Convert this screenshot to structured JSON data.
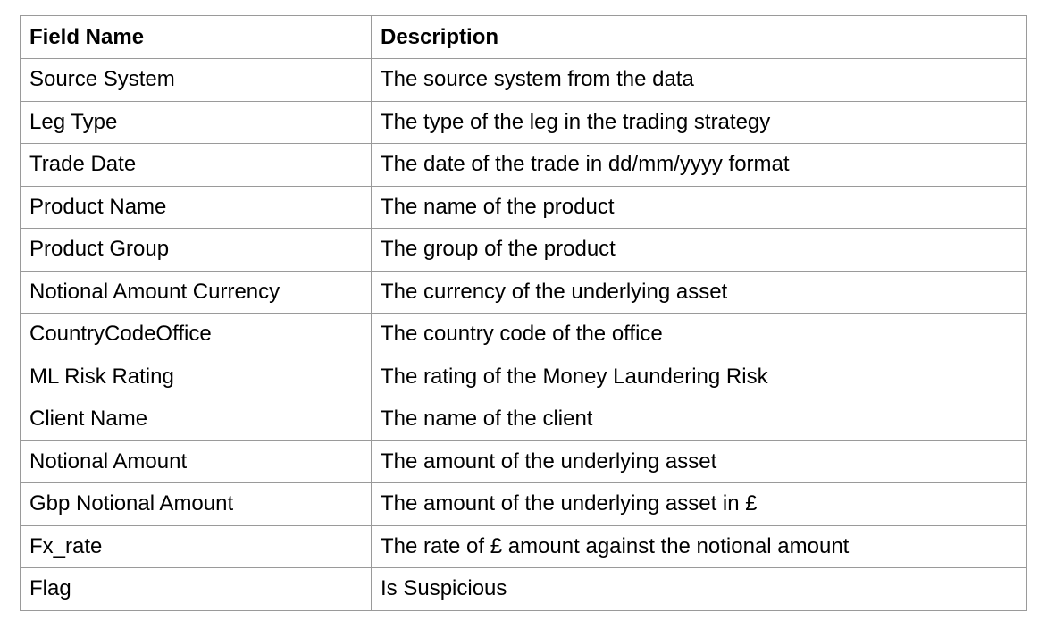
{
  "table": {
    "headers": [
      "Field Name",
      "Description"
    ],
    "rows": [
      [
        "Source System",
        "The source system from the data"
      ],
      [
        "Leg Type",
        "The type of the leg in the trading strategy"
      ],
      [
        "Trade Date",
        "The date of the trade in dd/mm/yyyy format"
      ],
      [
        "Product Name",
        "The name of the product"
      ],
      [
        "Product Group",
        "The group of the product"
      ],
      [
        "Notional Amount Currency",
        "The currency of the underlying asset"
      ],
      [
        "CountryCodeOffice",
        "The country code of the office"
      ],
      [
        "ML Risk Rating",
        "The rating of the Money Laundering Risk"
      ],
      [
        "Client Name",
        "The name of the client"
      ],
      [
        "Notional Amount",
        "The amount of the underlying asset"
      ],
      [
        "Gbp Notional Amount",
        "The amount of the underlying asset in £"
      ],
      [
        "Fx_rate",
        "The rate of £ amount against the notional amount"
      ],
      [
        "Flag",
        "Is Suspicious"
      ]
    ]
  }
}
